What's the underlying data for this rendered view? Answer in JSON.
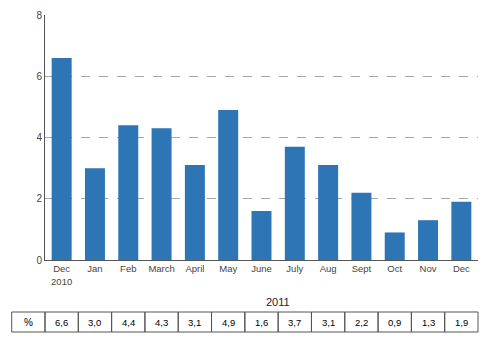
{
  "chart_data": {
    "type": "bar",
    "categories": [
      "Dec\n2010",
      "Jan",
      "Feb",
      "March",
      "April",
      "May",
      "June",
      "July",
      "Aug",
      "Sept",
      "Oct",
      "Nov",
      "Dec"
    ],
    "values": [
      6.6,
      3.0,
      4.4,
      4.3,
      3.1,
      4.9,
      1.6,
      3.7,
      3.1,
      2.2,
      0.9,
      1.3,
      1.9
    ],
    "color": "#2E75B6",
    "ylim": [
      0,
      8
    ],
    "yticks": [
      0,
      2,
      4,
      6,
      8
    ],
    "grid": true,
    "annotations": [
      {
        "text": "2011",
        "from": "Jan",
        "to": "Dec"
      }
    ],
    "table": {
      "row_label": "%",
      "values": [
        "6,6",
        "3,0",
        "4,4",
        "4,3",
        "3,1",
        "4,9",
        "1,6",
        "3,7",
        "3,1",
        "2,2",
        "0,9",
        "1,3",
        "1,9"
      ]
    }
  }
}
